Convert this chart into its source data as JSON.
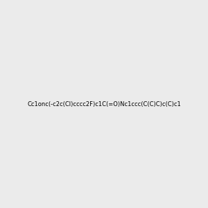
{
  "smiles": "Cc1onc(-c2c(Cl)cccc2F)c1C(=O)Nc1ccc(C(C)C)c(C)c1",
  "title": "",
  "background_color": "#ebebeb",
  "figure_size": [
    3.0,
    3.0
  ],
  "dpi": 100,
  "atom_colors": {
    "F": "#ff00ff",
    "Cl": "#00cc00",
    "N": "#0000ff",
    "O": "#ff0000",
    "C": "#000000",
    "H": "#888888"
  }
}
